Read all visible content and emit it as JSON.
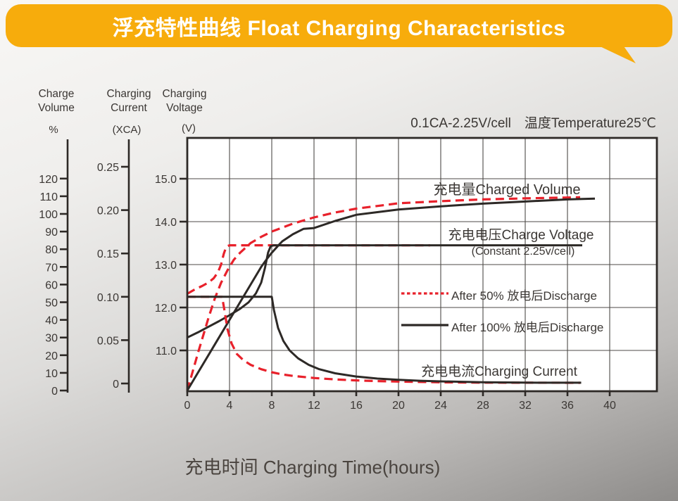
{
  "banner": {
    "title": "浮充特性曲线 Float Charging Characteristics",
    "color": "#F7AC0C"
  },
  "condition_note": "0.1CA-2.25V/cell　温度Temperature25℃",
  "axes": {
    "volume": {
      "title_line1": "Charge",
      "title_line2": "Volume",
      "unit": "%",
      "ticks": [
        0,
        10,
        20,
        30,
        40,
        50,
        60,
        70,
        80,
        90,
        100,
        110,
        120
      ]
    },
    "current": {
      "title_line1": "Charging",
      "title_line2": "Current",
      "unit": "(XCA)",
      "ticks": [
        "0.25",
        "0.20",
        "0.15",
        "0.10",
        "0.05",
        "0"
      ]
    },
    "voltage": {
      "title_line1": "Charging",
      "title_line2": "Voltage",
      "unit": "(V)",
      "ticks": [
        "15.0",
        "14.0",
        "13.0",
        "12.0",
        "11.0"
      ]
    }
  },
  "x_axis": {
    "title": "充电时间 Charging Time(hours)",
    "ticks": [
      0,
      4,
      8,
      12,
      16,
      20,
      24,
      28,
      32,
      36,
      40
    ]
  },
  "plot_labels": {
    "charged_volume": "充电量Charged Volume",
    "charge_voltage": "充电电压Charge Voltage",
    "charge_voltage_sub": "(Constant 2.25v/cell)",
    "charging_current": "充电电流Charging Current"
  },
  "legend": [
    {
      "label": "After 50% 放电后Discharge",
      "style": "dashed",
      "color": "#E8212B"
    },
    {
      "label": "After 100% 放电后Discharge",
      "style": "solid",
      "color": "#2D2926"
    }
  ],
  "chart_data": {
    "type": "line",
    "title": "浮充特性曲线 Float Charging Characteristics",
    "condition": "0.1CA-2.25V/cell 温度Temperature25℃",
    "xlabel": "充电时间 Charging Time(hours)",
    "xlim": [
      0,
      44
    ],
    "x_unit": "hours",
    "grid": true,
    "y_axes": {
      "volume": {
        "label": "Charge Volume",
        "unit": "%",
        "range": [
          0,
          120
        ],
        "ticks": [
          0,
          10,
          20,
          30,
          40,
          50,
          60,
          70,
          80,
          90,
          100,
          110,
          120
        ]
      },
      "current": {
        "label": "Charging Current",
        "unit": "XCA",
        "range": [
          0,
          0.25
        ],
        "ticks": [
          0,
          0.05,
          0.1,
          0.15,
          0.2,
          0.25
        ]
      },
      "voltage": {
        "label": "Charging Voltage",
        "unit": "V",
        "range": [
          11,
          15
        ],
        "ticks": [
          11,
          12,
          13,
          14,
          15
        ]
      }
    },
    "series": [
      {
        "name": "charge_voltage_after_50pct_discharge",
        "axis": "voltage",
        "unit": "V",
        "color": "#E8212B",
        "dash": true,
        "points": [
          [
            0,
            12.32
          ],
          [
            0.7,
            12.42
          ],
          [
            1.4,
            12.5
          ],
          [
            2,
            12.58
          ],
          [
            2.5,
            12.68
          ],
          [
            2.9,
            12.82
          ],
          [
            3.2,
            13.0
          ],
          [
            3.45,
            13.25
          ],
          [
            3.7,
            13.42
          ],
          [
            4,
            13.45
          ],
          [
            23,
            13.45
          ]
        ]
      },
      {
        "name": "charge_voltage_after_100pct_discharge",
        "axis": "voltage",
        "unit": "V",
        "color": "#2D2926",
        "dash": false,
        "points": [
          [
            0,
            11.3
          ],
          [
            1,
            11.42
          ],
          [
            2,
            11.55
          ],
          [
            3,
            11.68
          ],
          [
            4,
            11.82
          ],
          [
            5,
            11.97
          ],
          [
            5.8,
            12.12
          ],
          [
            6.5,
            12.33
          ],
          [
            7,
            12.58
          ],
          [
            7.35,
            12.92
          ],
          [
            7.65,
            13.28
          ],
          [
            7.9,
            13.43
          ],
          [
            8.2,
            13.45
          ],
          [
            37.4,
            13.45
          ]
        ]
      },
      {
        "name": "charged_volume_after_50pct_discharge",
        "axis": "volume",
        "unit": "%",
        "color": "#E8212B",
        "dash": true,
        "points": [
          [
            0,
            0
          ],
          [
            1,
            21
          ],
          [
            2,
            41
          ],
          [
            2.6,
            52
          ],
          [
            3.2,
            61
          ],
          [
            3.8,
            68
          ],
          [
            4.4,
            74
          ],
          [
            5,
            78
          ],
          [
            6,
            83.5
          ],
          [
            7,
            87
          ],
          [
            8,
            90
          ],
          [
            10,
            94.5
          ],
          [
            12,
            98
          ],
          [
            14,
            100.8
          ],
          [
            16,
            103
          ],
          [
            20,
            106
          ],
          [
            24,
            107.2
          ],
          [
            28,
            108.2
          ],
          [
            32,
            108.8
          ],
          [
            36,
            109.3
          ],
          [
            37.2,
            109.4
          ]
        ]
      },
      {
        "name": "charged_volume_after_100pct_discharge",
        "axis": "volume",
        "unit": "%",
        "color": "#2D2926",
        "dash": false,
        "points": [
          [
            0,
            0
          ],
          [
            1,
            10
          ],
          [
            2,
            20
          ],
          [
            3,
            30
          ],
          [
            4,
            40
          ],
          [
            5,
            50
          ],
          [
            6,
            60
          ],
          [
            7,
            70
          ],
          [
            7.6,
            75
          ],
          [
            8,
            78
          ],
          [
            8.6,
            82
          ],
          [
            9,
            84.5
          ],
          [
            10,
            88.5
          ],
          [
            11,
            91.5
          ],
          [
            12,
            92
          ],
          [
            14,
            96
          ],
          [
            16,
            99.5
          ],
          [
            18,
            101
          ],
          [
            20,
            102.5
          ],
          [
            24,
            104.3
          ],
          [
            28,
            105.8
          ],
          [
            32,
            107
          ],
          [
            36,
            108.2
          ],
          [
            38.6,
            108.7
          ]
        ]
      },
      {
        "name": "charging_current_after_50pct_discharge",
        "axis": "current",
        "unit": "XCA",
        "color": "#E8212B",
        "dash": true,
        "points": [
          [
            0,
            0.1
          ],
          [
            3.3,
            0.1
          ],
          [
            3.55,
            0.082
          ],
          [
            3.8,
            0.063
          ],
          [
            4.2,
            0.046
          ],
          [
            4.7,
            0.034
          ],
          [
            5.3,
            0.027
          ],
          [
            6,
            0.0215
          ],
          [
            7,
            0.0165
          ],
          [
            8,
            0.013
          ],
          [
            9,
            0.0105
          ],
          [
            10,
            0.0088
          ],
          [
            12,
            0.0063
          ],
          [
            14,
            0.0047
          ],
          [
            16,
            0.0036
          ],
          [
            18,
            0.0028
          ],
          [
            20,
            0.0022
          ],
          [
            24,
            0.0014
          ],
          [
            28,
            0.001
          ],
          [
            37.2,
            0.0008
          ]
        ]
      },
      {
        "name": "charging_current_after_100pct_discharge",
        "axis": "current",
        "unit": "XCA",
        "color": "#2D2926",
        "dash": false,
        "points": [
          [
            0,
            0.1
          ],
          [
            8,
            0.1
          ],
          [
            8.2,
            0.085
          ],
          [
            8.6,
            0.064
          ],
          [
            9.1,
            0.049
          ],
          [
            9.7,
            0.038
          ],
          [
            10.5,
            0.029
          ],
          [
            11.5,
            0.0215
          ],
          [
            12.5,
            0.0165
          ],
          [
            14,
            0.0118
          ],
          [
            16,
            0.008
          ],
          [
            18,
            0.0057
          ],
          [
            20,
            0.0042
          ],
          [
            22,
            0.0032
          ],
          [
            24,
            0.0024
          ],
          [
            28,
            0.0015
          ],
          [
            32,
            0.001
          ],
          [
            37.3,
            0.0009
          ]
        ]
      }
    ]
  }
}
